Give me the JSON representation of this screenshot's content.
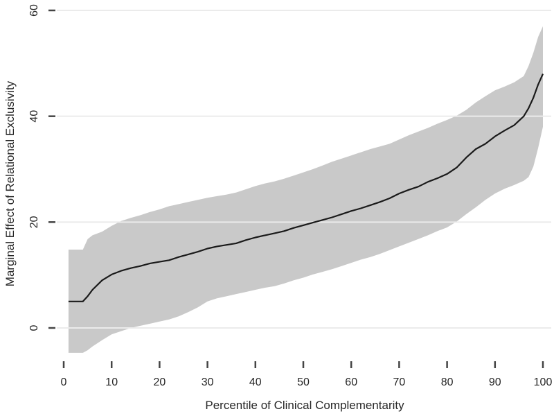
{
  "figure": {
    "background": "#ffffff"
  },
  "chart_data": {
    "type": "line",
    "title": "",
    "xlabel": "Percentile of Clinical Complementarity",
    "ylabel": "Marginal Effect of Relational Exclusivity",
    "xlim": [
      0,
      100
    ],
    "ylim": [
      -8,
      62
    ],
    "x_ticks": [
      0,
      10,
      20,
      30,
      40,
      50,
      60,
      70,
      80,
      90,
      100
    ],
    "y_ticks": [
      0,
      20,
      40,
      60
    ],
    "grid": "horizontal-only",
    "legend": "none",
    "x": [
      1,
      4,
      5,
      6,
      8,
      10,
      12,
      14,
      16,
      18,
      20,
      22,
      24,
      26,
      28,
      30,
      32,
      34,
      36,
      38,
      40,
      42,
      44,
      46,
      48,
      50,
      52,
      54,
      56,
      58,
      60,
      62,
      64,
      66,
      68,
      70,
      72,
      74,
      76,
      78,
      80,
      82,
      84,
      86,
      88,
      90,
      92,
      94,
      96,
      97,
      98,
      99,
      100
    ],
    "series": [
      {
        "name": "marginal-effect",
        "style": "solid-black-line",
        "values": [
          5.0,
          5.0,
          6.0,
          7.2,
          9.0,
          10.1,
          10.8,
          11.3,
          11.7,
          12.2,
          12.5,
          12.8,
          13.4,
          13.9,
          14.4,
          15.0,
          15.4,
          15.7,
          16.0,
          16.6,
          17.1,
          17.5,
          17.9,
          18.3,
          18.9,
          19.4,
          19.9,
          20.4,
          20.9,
          21.5,
          22.1,
          22.6,
          23.2,
          23.8,
          24.5,
          25.4,
          26.1,
          26.7,
          27.6,
          28.3,
          29.1,
          30.3,
          32.2,
          33.8,
          34.8,
          36.2,
          37.3,
          38.3,
          40.0,
          41.5,
          43.5,
          46.0,
          48.0
        ]
      },
      {
        "name": "ci-lower",
        "style": "gray-band-lower-edge",
        "values": [
          -4.7,
          -4.7,
          -4.2,
          -3.5,
          -2.3,
          -1.2,
          -0.6,
          0.0,
          0.4,
          0.8,
          1.2,
          1.6,
          2.2,
          3.0,
          3.9,
          5.0,
          5.6,
          6.0,
          6.4,
          6.8,
          7.2,
          7.6,
          7.9,
          8.4,
          9.0,
          9.5,
          10.1,
          10.6,
          11.1,
          11.7,
          12.3,
          12.9,
          13.4,
          14.0,
          14.7,
          15.4,
          16.1,
          16.8,
          17.5,
          18.3,
          19.0,
          20.1,
          21.5,
          22.8,
          24.2,
          25.4,
          26.3,
          27.0,
          27.8,
          28.5,
          30.5,
          34.0,
          38.0
        ]
      },
      {
        "name": "ci-upper",
        "style": "gray-band-upper-edge",
        "values": [
          14.8,
          14.8,
          16.8,
          17.5,
          18.2,
          19.3,
          20.2,
          20.8,
          21.3,
          21.9,
          22.4,
          23.0,
          23.4,
          23.8,
          24.2,
          24.6,
          24.9,
          25.2,
          25.6,
          26.2,
          26.8,
          27.3,
          27.7,
          28.2,
          28.8,
          29.4,
          30.0,
          30.7,
          31.4,
          32.0,
          32.6,
          33.2,
          33.8,
          34.3,
          34.8,
          35.6,
          36.4,
          37.1,
          37.8,
          38.6,
          39.3,
          40.1,
          41.2,
          42.6,
          43.8,
          44.9,
          45.6,
          46.4,
          47.6,
          49.5,
          52.0,
          55.0,
          57.0
        ]
      }
    ],
    "colors": {
      "band": "#c9c9c9",
      "line": "#1a1a1a",
      "gridline": "#ebebeb",
      "tick": "#444444",
      "text": "#262626",
      "background": "#ffffff"
    }
  }
}
